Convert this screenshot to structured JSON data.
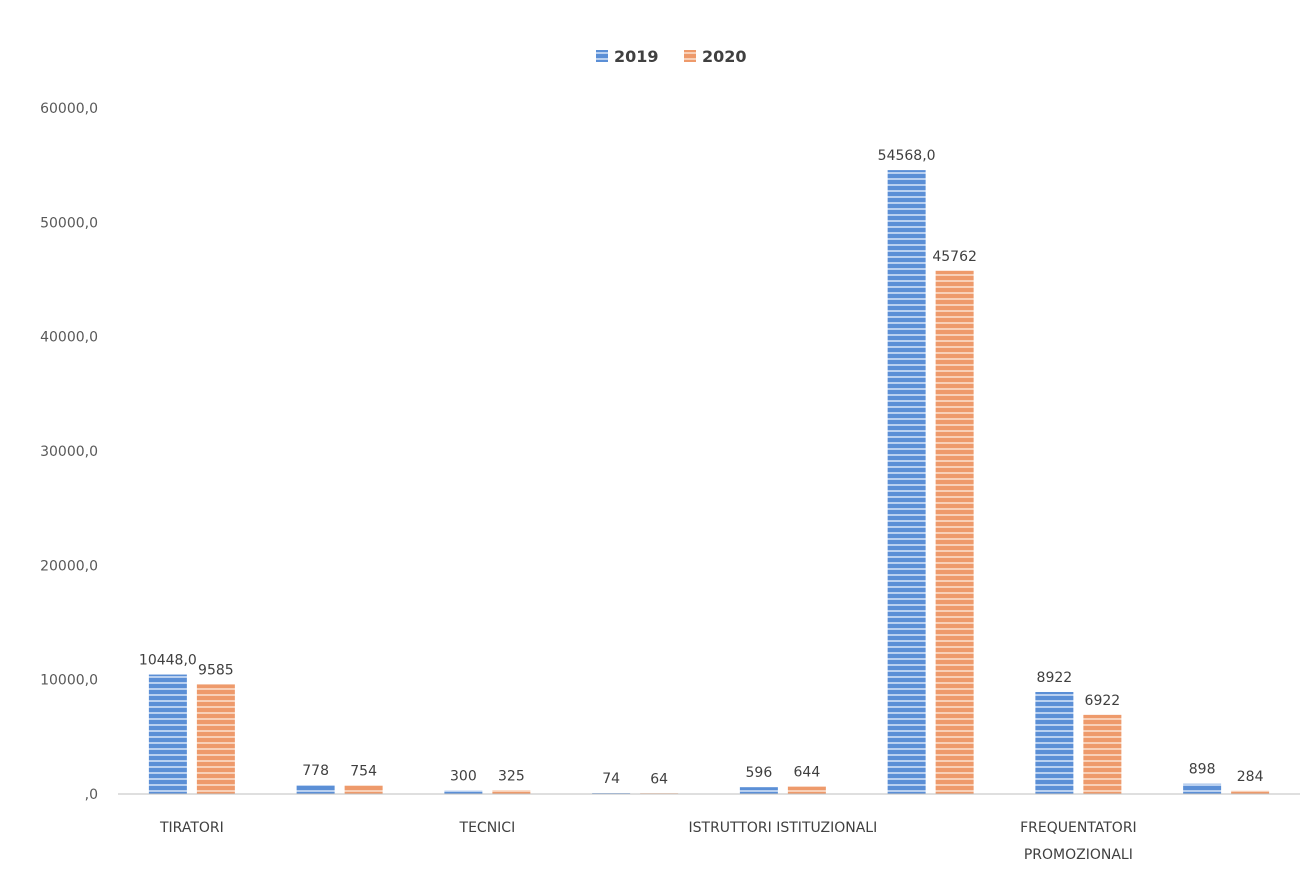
{
  "chart_data": {
    "type": "bar",
    "title": "",
    "xlabel": "",
    "ylabel": "",
    "ylim": [
      0,
      60000
    ],
    "yticks": [
      0,
      10000,
      20000,
      30000,
      40000,
      50000,
      60000
    ],
    "ytick_labels": [
      ",0",
      "10000,0",
      "20000,0",
      "30000,0",
      "40000,0",
      "50000,0",
      "60000,0"
    ],
    "grid": false,
    "legend_position": "top",
    "categories": [
      "TIRATORI",
      "",
      "TECNICI",
      "",
      "ISTRUTTORI ISTITUZIONALI",
      "",
      "FREQUENTATORI PROMOZIONALI",
      ""
    ],
    "series": [
      {
        "name": "2019",
        "color": "#5b8fd6",
        "values": [
          10448,
          778,
          300,
          74,
          596,
          54568,
          8922,
          898
        ],
        "labels": [
          "10448,0",
          "778",
          "300",
          "74",
          "596",
          "54568,0",
          "8922",
          "898"
        ]
      },
      {
        "name": "2020",
        "color": "#ee9a6b",
        "values": [
          9585,
          754,
          325,
          64,
          644,
          45762,
          6922,
          284
        ],
        "labels": [
          "9585",
          "754",
          "325",
          "64",
          "644",
          "45762",
          "6922",
          "284"
        ]
      }
    ]
  }
}
